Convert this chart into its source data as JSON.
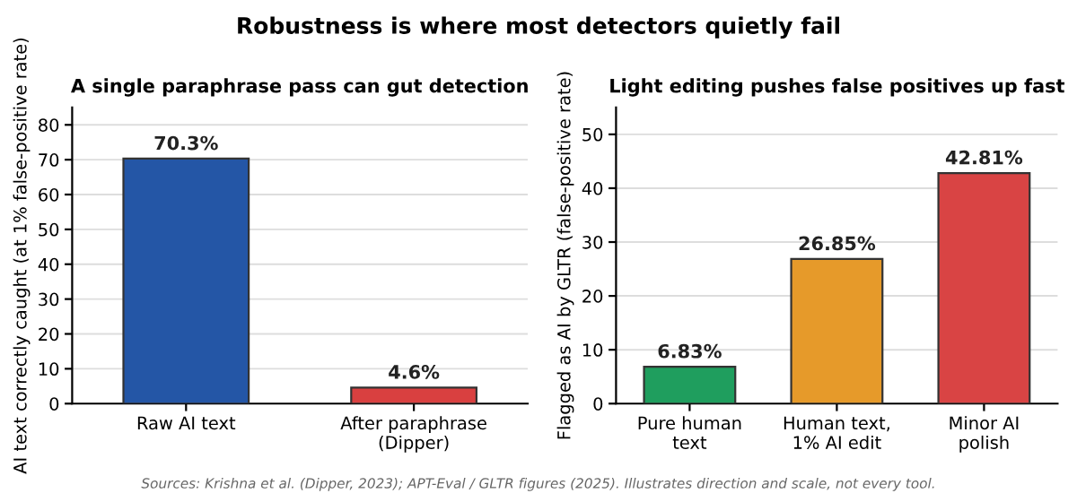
{
  "chart_data": [
    {
      "type": "bar",
      "title": "A single paraphrase pass can gut detection",
      "ylabel": "AI text correctly caught (at 1% false-positive rate)",
      "categories": [
        "Raw AI text",
        "After paraphrase\n(Dipper)"
      ],
      "values": [
        70.3,
        4.6
      ],
      "colors": [
        "#2456a6",
        "#d94040"
      ],
      "value_labels": [
        "70.3%",
        "4.6%"
      ],
      "ylim": [
        0,
        85
      ],
      "yticks": [
        0,
        10,
        20,
        30,
        40,
        50,
        60,
        70,
        80
      ],
      "grid": "y",
      "annotations": [
        "Robustness is where most detectors quietly fail",
        "Sources: Krishna et al. (Dipper, 2023); APT-Eval / GLTR figures (2025). Illustrates direction and scale, not every tool."
      ]
    },
    {
      "type": "bar",
      "title": "Light editing pushes false positives up fast",
      "ylabel": "Flagged as AI by GLTR (false-positive rate)",
      "categories": [
        "Pure human\ntext",
        "Human text,\n1% AI edit",
        "Minor AI\npolish"
      ],
      "values": [
        6.83,
        26.85,
        42.81
      ],
      "colors": [
        "#1f9e5e",
        "#e69a2a",
        "#d94444"
      ],
      "value_labels": [
        "6.83%",
        "26.85%",
        "42.81%"
      ],
      "ylim": [
        0,
        55
      ],
      "yticks": [
        0,
        10,
        20,
        30,
        40,
        50
      ],
      "grid": "y"
    }
  ]
}
